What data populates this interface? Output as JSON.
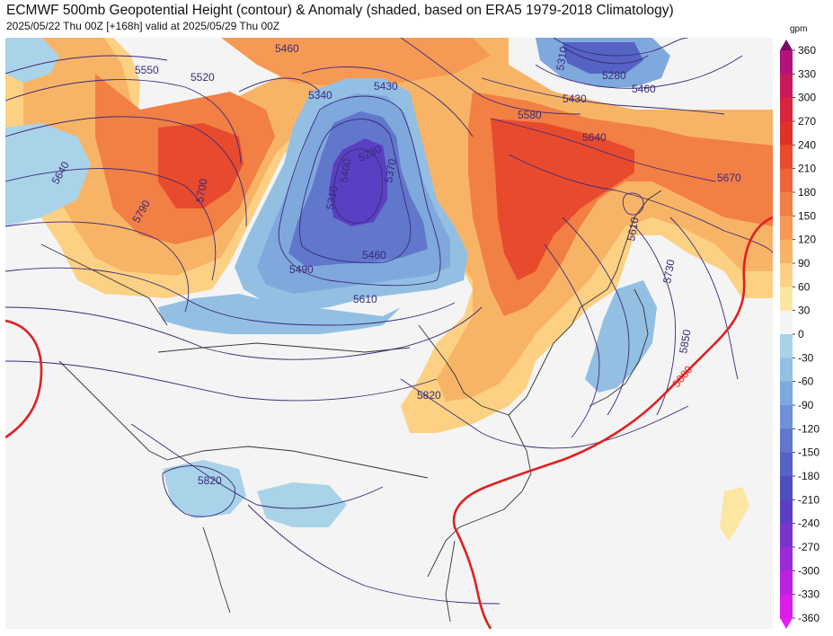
{
  "header": {
    "title": "ECMWF 500mb Geopotential Height (contour) & Anomaly (shaded, based on ERA5 1979-2018 Climatology)",
    "subtitle": "2025/05/22 Thu 00Z [+168h] valid at 2025/05/29 Thu 00Z"
  },
  "map": {
    "contour_labels": [
      {
        "text": "5550"
      },
      {
        "text": "5520"
      },
      {
        "text": "5460"
      },
      {
        "text": "5430"
      },
      {
        "text": "5340"
      },
      {
        "text": "5640"
      },
      {
        "text": "5790"
      },
      {
        "text": "5700"
      },
      {
        "text": "5400"
      },
      {
        "text": "5280"
      },
      {
        "text": "5370"
      },
      {
        "text": "5310"
      },
      {
        "text": "5490"
      },
      {
        "text": "5460"
      },
      {
        "text": "5610"
      },
      {
        "text": "5310"
      },
      {
        "text": "5280"
      },
      {
        "text": "5430"
      },
      {
        "text": "5460"
      },
      {
        "text": "5580"
      },
      {
        "text": "5640"
      },
      {
        "text": "5670"
      },
      {
        "text": "5610"
      },
      {
        "text": "5730"
      },
      {
        "text": "5850"
      },
      {
        "text": "5880"
      },
      {
        "text": "5820"
      },
      {
        "text": "5820"
      }
    ],
    "colors": {
      "height_contour": "#3a2a7a",
      "ridge_5880": "#e02020",
      "land_outline": "#333333",
      "background": "#f4f4f4"
    }
  },
  "colorbar": {
    "unit": "gpm",
    "ticks": [
      360,
      330,
      300,
      270,
      240,
      210,
      180,
      150,
      120,
      90,
      60,
      30,
      0,
      -30,
      -60,
      -90,
      -120,
      -150,
      -180,
      -210,
      -240,
      -270,
      -300,
      -330,
      -360
    ],
    "colors": [
      "#b2127a",
      "#c71a5a",
      "#d8243e",
      "#e03028",
      "#e84a2e",
      "#ee6437",
      "#f27f44",
      "#f59955",
      "#f8b466",
      "#fcd184",
      "#fbe6a2",
      "#f4f4f4",
      "#a9d3e8",
      "#93bfe3",
      "#7fa8dd",
      "#6f91d5",
      "#6077cc",
      "#5563c4",
      "#4c4fbc",
      "#5b3fc3",
      "#7a34cc",
      "#9b2ad7",
      "#ba22e0",
      "#d81deb"
    ]
  }
}
